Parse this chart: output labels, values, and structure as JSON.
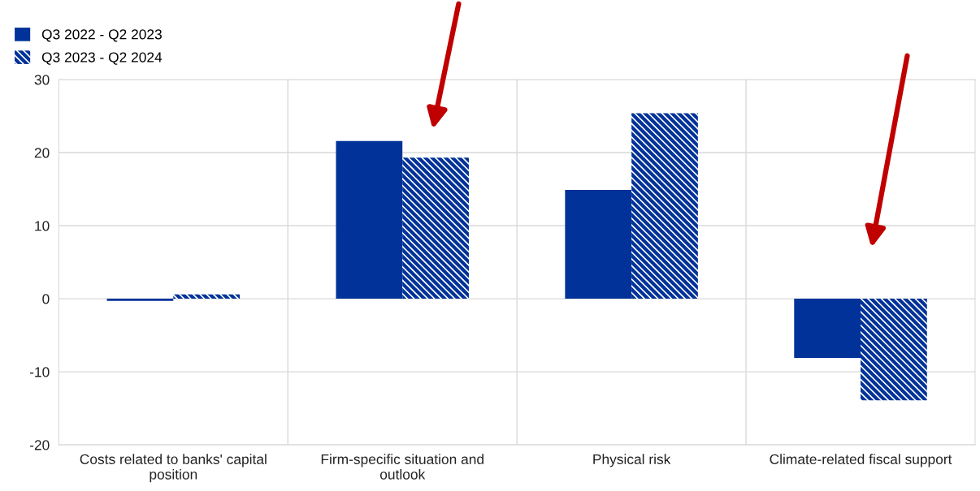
{
  "chart_data": {
    "type": "bar",
    "categories": [
      "Costs related to banks' capital position",
      "Firm-specific situation and outlook",
      "Physical risk",
      "Climate-related fiscal support"
    ],
    "series": [
      {
        "name": "Q3 2022 - Q2 2023",
        "color": "#003299",
        "values": [
          -0.3,
          21.6,
          14.9,
          -8.1
        ]
      },
      {
        "name": "Q3 2023 - Q2 2024",
        "color": "#003299",
        "values": [
          0.6,
          19.3,
          25.4,
          -13.9
        ]
      }
    ],
    "ylim": [
      -20,
      30
    ],
    "yticks": [
      -20,
      -10,
      0,
      10,
      20,
      30
    ],
    "grid": true,
    "legend": "top left"
  }
}
